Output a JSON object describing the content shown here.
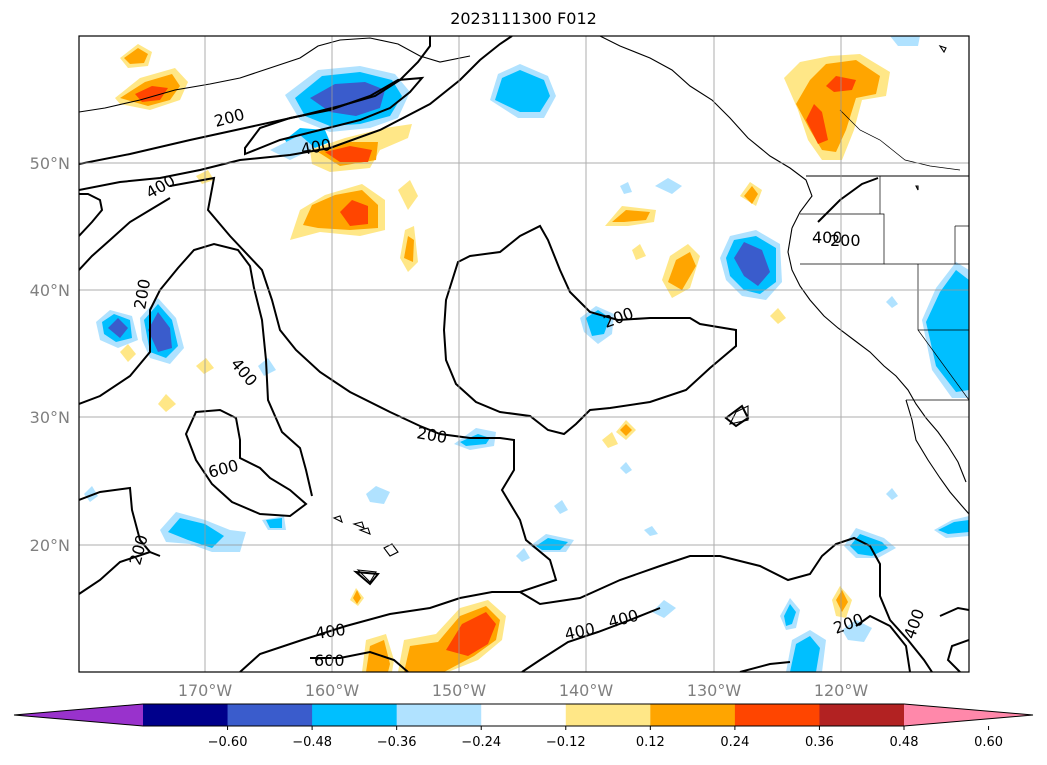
{
  "title": "2023111300 F012",
  "latitude_labels": [
    "50°N",
    "40°N",
    "30°N",
    "20°N"
  ],
  "longitude_labels": [
    "170°W",
    "160°W",
    "150°W",
    "140°W",
    "130°W",
    "120°W"
  ],
  "colorbar": {
    "ticks": [
      "−0.60",
      "−0.48",
      "−0.36",
      "−0.24",
      "−0.12",
      "0.12",
      "0.24",
      "0.36",
      "0.48",
      "0.60"
    ],
    "colors": [
      "#9932cc",
      "#00008b",
      "#3a5ccc",
      "#00bfff",
      "#b0e2ff",
      "#ffffff",
      "#ffe787",
      "#ffa500",
      "#ff4500",
      "#b22222",
      "#ff88aa"
    ]
  },
  "contour_labels": [
    "200",
    "400",
    "400",
    "400",
    "200",
    "400",
    "600",
    "200",
    "200",
    "200",
    "400",
    "600",
    "400",
    "400",
    "200",
    "200",
    "400"
  ],
  "fill_colors": {
    "light_blue": "#b0e2ff",
    "cyan": "#00bfff",
    "blue": "#3a5ccc",
    "yellow": "#ffe787",
    "orange": "#ffa500",
    "red": "#ff4500"
  }
}
